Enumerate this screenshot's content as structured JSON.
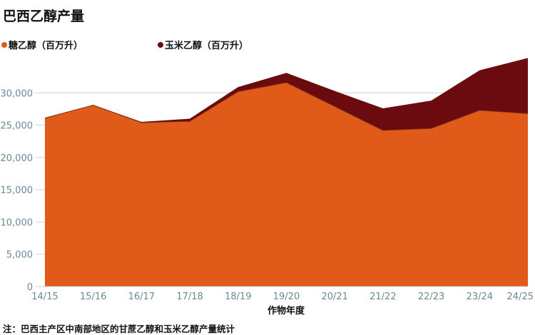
{
  "chart_data": {
    "type": "area",
    "stacked": true,
    "title": "巴西乙醇产量",
    "xlabel": "作物年度",
    "ylabel": "",
    "ylim": [
      0,
      35000
    ],
    "yticks": [
      0,
      5000,
      10000,
      15000,
      20000,
      25000,
      30000
    ],
    "ytick_labels": [
      "0",
      "5,000",
      "10,000",
      "15,000",
      "20,000",
      "25,000",
      "30,000"
    ],
    "categories": [
      "14/15",
      "15/16",
      "16/17",
      "17/18",
      "18/19",
      "19/20",
      "20/21",
      "21/22",
      "22/23",
      "23/24",
      "24/25"
    ],
    "series": [
      {
        "name": "糖乙醇（百万升）",
        "color": "#e05a1a",
        "values": [
          26100,
          28100,
          25400,
          25600,
          30200,
          31600,
          27900,
          24200,
          24500,
          27300,
          26800
        ]
      },
      {
        "name": "玉米乙醇（百万升）",
        "color": "#6b0a0f",
        "values": [
          0,
          0,
          100,
          400,
          700,
          1500,
          2400,
          3400,
          4300,
          6200,
          8600
        ]
      }
    ],
    "grid": true,
    "legend_position": "top-left",
    "note": "注：巴西主产区中南部地区的甘蔗乙醇和玉米乙醇产量统计"
  }
}
